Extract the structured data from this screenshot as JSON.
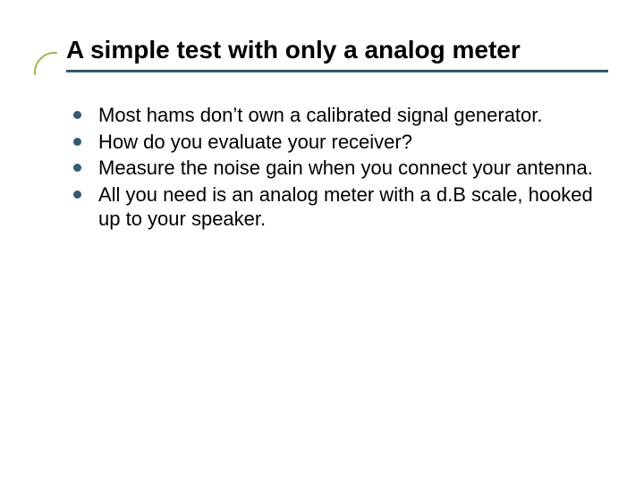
{
  "slide": {
    "title": "A simple test with only a analog meter",
    "title_color": "#000000",
    "title_fontsize": 28,
    "rule_color": "#2f5b74",
    "accent_arc_color": "#9fb84a",
    "background_color": "#ffffff",
    "bullets": {
      "marker_color": "#2f5b74",
      "text_color": "#000000",
      "fontsize": 22,
      "items": [
        "Most hams don’t own a calibrated signal generator.",
        "How do you evaluate your receiver?",
        "Measure the noise gain when you connect your antenna.",
        "All you need is an analog meter with a d.B scale, hooked up to your speaker."
      ]
    }
  }
}
